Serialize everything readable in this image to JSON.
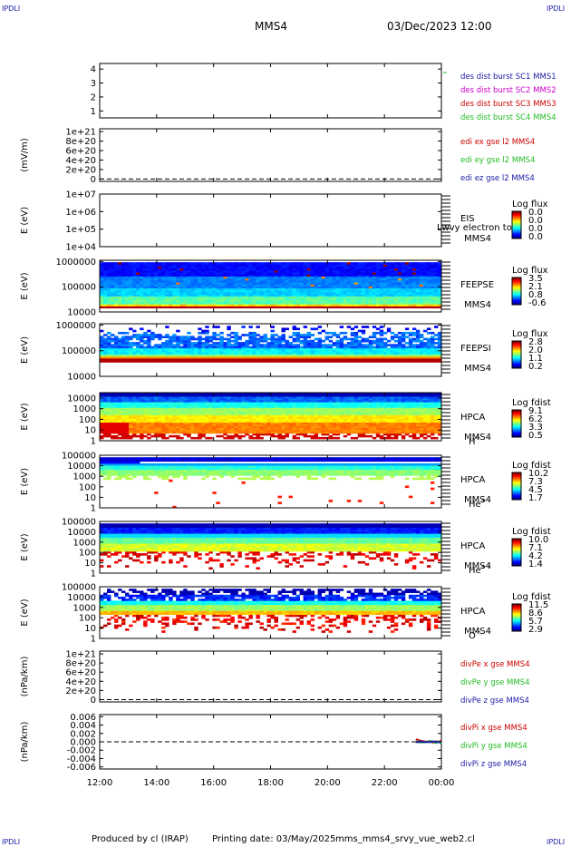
{
  "header": {
    "left_tag": "IPDLI",
    "right_tag": "IPDLI",
    "bottom_left_tag": "IPDLI",
    "bottom_right_tag": "IPDLI",
    "title": "MMS4",
    "date": "03/Dec/2023 12:00"
  },
  "footer": {
    "produced": "Produced by cl (IRAP)",
    "printing": "Printing date: 03/May/2025",
    "script": "mms_mms4_srvy_vue_web2.cl"
  },
  "colors": {
    "blue": "#1a1aa6",
    "magenta": "#cc00cc",
    "red": "#cc0000",
    "green": "#22bb22",
    "black": "#000000"
  },
  "x_axis": {
    "ticks": [
      "12:00",
      "14:00",
      "16:00",
      "18:00",
      "20:00",
      "22:00",
      "00:00"
    ],
    "hours": [
      0,
      2,
      4,
      6,
      8,
      10,
      12
    ]
  },
  "chart_data": [
    {
      "type": "line",
      "id": "p1",
      "ylabel": "",
      "yticks": [
        "1",
        "2",
        "3",
        "4"
      ],
      "yvals": [
        1,
        2,
        3,
        4
      ],
      "ylim": [
        0.5,
        4.4
      ],
      "legend": [
        {
          "text": "des dist burst SC1 MMS1",
          "color": "blue"
        },
        {
          "text": "des dist burst SC2 MMS2",
          "color": "magenta"
        },
        {
          "text": "des dist burst SC3 MMS3",
          "color": "red"
        },
        {
          "text": "des dist burst SC4 MMS4",
          "color": "green"
        }
      ]
    },
    {
      "type": "line",
      "id": "p2",
      "ylabel": "(mV/m)",
      "yticks": [
        "0",
        "2e+20",
        "4e+20",
        "6e+20",
        "8e+20",
        "1e+21"
      ],
      "yvals": [
        0,
        2,
        4,
        6,
        8,
        10
      ],
      "ylim": [
        -0.5,
        10.6
      ],
      "zero_line": true,
      "legend": [
        {
          "text": "edi ex gse l2 MMS4",
          "color": "red"
        },
        {
          "text": "edi ey gse l2 MMS4",
          "color": "green"
        },
        {
          "text": "edi ez gse l2 MMS4",
          "color": "blue"
        }
      ]
    },
    {
      "type": "heatmap",
      "id": "p3",
      "ylabel": "E (eV)",
      "yticks": [
        "1e+04",
        "1e+05",
        "1e+06",
        "1e+07"
      ],
      "yvals": [
        4,
        5,
        6,
        7
      ],
      "ylim": [
        4,
        7
      ],
      "side_labels": [
        "EIS",
        "MMS4"
      ],
      "overlay": "Lwvy electron to",
      "colorbar_title": "Log flux",
      "colorbar_ticks": [
        "0.0",
        "0.0",
        "0.0",
        "0.0"
      ],
      "pattern": "empty"
    },
    {
      "type": "heatmap",
      "id": "p4",
      "ylabel": "E (eV)",
      "yticks": [
        "10000",
        "100000",
        "1000000"
      ],
      "yvals": [
        4,
        5,
        6
      ],
      "ylim": [
        4,
        6.05
      ],
      "side_labels": [
        "FEEPSE",
        "MMS4"
      ],
      "colorbar_title": "Log flux",
      "colorbar_ticks": [
        "3.5",
        "2.1",
        "0.8",
        "-0.6"
      ],
      "pattern": "feeps_e"
    },
    {
      "type": "heatmap",
      "id": "p5",
      "ylabel": "E (eV)",
      "yticks": [
        "10000",
        "100000",
        "1000000"
      ],
      "yvals": [
        4,
        5,
        6
      ],
      "ylim": [
        4,
        6.05
      ],
      "side_labels": [
        "FEEPSI",
        "MMS4"
      ],
      "colorbar_title": "Log flux",
      "colorbar_ticks": [
        "2.8",
        "2.0",
        "1.1",
        "0.2"
      ],
      "pattern": "feeps_i"
    },
    {
      "type": "heatmap",
      "id": "p6",
      "ylabel": "E (eV)",
      "yticks": [
        "1",
        "10",
        "100",
        "1000",
        "10000"
      ],
      "yvals": [
        0,
        1,
        2,
        3,
        4
      ],
      "ylim": [
        0,
        4.5
      ],
      "side_labels": [
        "HPCA",
        "MMS4"
      ],
      "species": "H",
      "species_sup": "+",
      "colorbar_title": "Log fdist",
      "colorbar_ticks": [
        "9.1",
        "6.2",
        "3.3",
        "0.5"
      ],
      "pattern": "hpca_h"
    },
    {
      "type": "heatmap",
      "id": "p7",
      "ylabel": "E (eV)",
      "yticks": [
        "1",
        "10",
        "100",
        "1000",
        "10000",
        "100000"
      ],
      "yvals": [
        0,
        1,
        2,
        3,
        4,
        5
      ],
      "ylim": [
        0,
        5
      ],
      "side_labels": [
        "HPCA",
        "MMS4"
      ],
      "species": "He",
      "species_sup": "+",
      "colorbar_title": "Log fdist",
      "colorbar_ticks": [
        "10.2",
        "7.3",
        "4.5",
        "1.7"
      ],
      "pattern": "hpca_he"
    },
    {
      "type": "heatmap",
      "id": "p8",
      "ylabel": "E (eV)",
      "yticks": [
        "1",
        "10",
        "100",
        "1000",
        "10000",
        "100000"
      ],
      "yvals": [
        0,
        1,
        2,
        3,
        4,
        5
      ],
      "ylim": [
        0,
        5
      ],
      "side_labels": [
        "HPCA",
        "MMS4"
      ],
      "species": "He",
      "species_sup": "++",
      "colorbar_title": "Log fdist",
      "colorbar_ticks": [
        "10.0",
        "7.1",
        "4.2",
        "1.4"
      ],
      "pattern": "hpca_hepp"
    },
    {
      "type": "heatmap",
      "id": "p9",
      "ylabel": "E (eV)",
      "yticks": [
        "1",
        "10",
        "100",
        "1000",
        "10000",
        "100000"
      ],
      "yvals": [
        0,
        1,
        2,
        3,
        4,
        5
      ],
      "ylim": [
        0,
        5
      ],
      "side_labels": [
        "HPCA",
        "MMS4"
      ],
      "species": "O",
      "species_sup": "+",
      "colorbar_title": "Log fdist",
      "colorbar_ticks": [
        "11.5",
        "8.6",
        "5.7",
        "2.9"
      ],
      "pattern": "hpca_o"
    },
    {
      "type": "line",
      "id": "p10",
      "ylabel": "(nPa/km)",
      "yticks": [
        "0",
        "2e+20",
        "4e+20",
        "6e+20",
        "8e+20",
        "1e+21"
      ],
      "yvals": [
        0,
        2,
        4,
        6,
        8,
        10
      ],
      "ylim": [
        -0.5,
        10.6
      ],
      "zero_line": true,
      "legend": [
        {
          "text": "divPe x gse MMS4",
          "color": "red"
        },
        {
          "text": "divPe y gse MMS4",
          "color": "green"
        },
        {
          "text": "divPe z gse MMS4",
          "color": "blue"
        }
      ]
    },
    {
      "type": "line",
      "id": "p11",
      "ylabel": "(nPa/km)",
      "yticks": [
        "-0.006",
        "-0.004",
        "-0.002",
        "0.000",
        "0.002",
        "0.004",
        "0.006"
      ],
      "yvals": [
        -0.006,
        -0.004,
        -0.002,
        0,
        0.002,
        0.004,
        0.006
      ],
      "ylim": [
        -0.0065,
        0.0065
      ],
      "zero_line": true,
      "legend": [
        {
          "text": "divPi x gse MMS4",
          "color": "red"
        },
        {
          "text": "divPi y gse MMS4",
          "color": "green"
        },
        {
          "text": "divPi z gse MMS4",
          "color": "blue"
        }
      ],
      "series": [
        {
          "name": "divPi x gse MMS4",
          "color": "red",
          "x": [
            11.1,
            11.2,
            11.3,
            11.4,
            11.5,
            11.6,
            11.7,
            11.8,
            11.9,
            12.0
          ],
          "y": [
            0.0006,
            0.0004,
            0.0002,
            0.0001,
            0.0,
            0.0002,
            -0.0002,
            0.0001,
            0.0,
            0.0003
          ]
        },
        {
          "name": "divPi y gse MMS4",
          "color": "green",
          "x": [
            11.1,
            11.2,
            11.3,
            11.4,
            11.5,
            11.6,
            11.7,
            11.8,
            11.9,
            12.0
          ],
          "y": [
            -0.0001,
            0.0001,
            -0.0002,
            0.0,
            -0.0001,
            0.0002,
            0.0,
            -0.0003,
            0.0001,
            -0.0005
          ]
        },
        {
          "name": "divPi z gse MMS4",
          "color": "blue",
          "x": [
            11.1,
            11.2,
            11.3,
            11.4,
            11.5,
            11.6,
            11.7,
            11.8,
            11.9,
            12.0
          ],
          "y": [
            0.0,
            -0.0001,
            0.0001,
            -0.0001,
            0.0,
            -0.0001,
            0.0001,
            0.0,
            -0.0001,
            0.0
          ]
        }
      ]
    }
  ]
}
